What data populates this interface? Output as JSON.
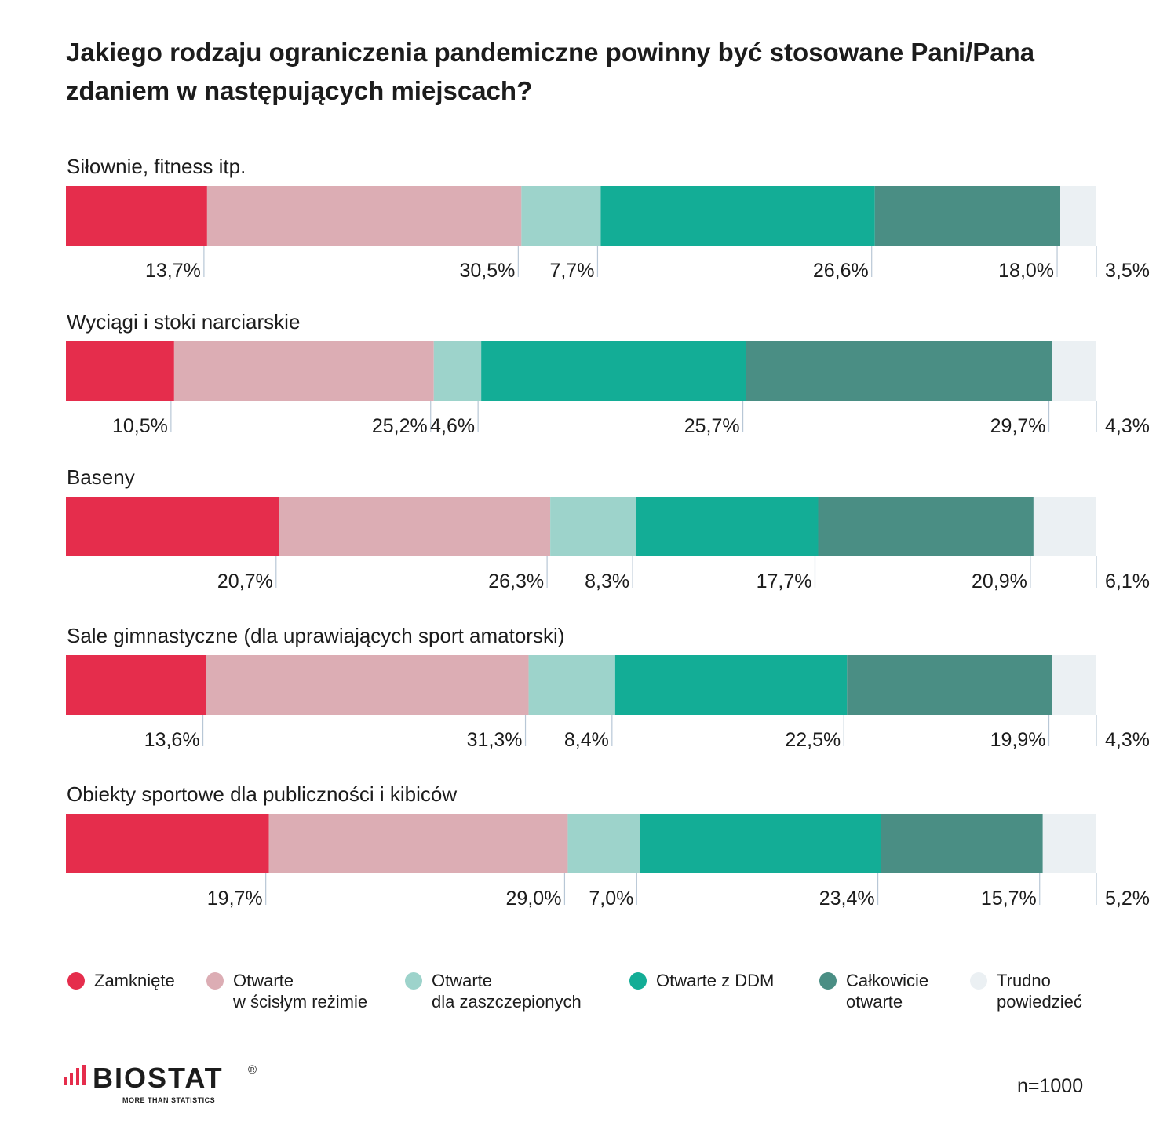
{
  "title": "Jakiego rodzaju ograniczenia pandemiczne powinny być stosowane Pani/Pana zdaniem w następujących miejscach?",
  "colors": {
    "zamkniete": "#e52d4c",
    "scisly": "#dcadb4",
    "zaszczepieni": "#9dd3cb",
    "ddm": "#13ad96",
    "calkowicie": "#4a8e84",
    "trudno": "#ebf0f3",
    "ticks": "#b8c7d6"
  },
  "chart_data": {
    "type": "bar",
    "orientation": "horizontal",
    "stacked": true,
    "unit": "%",
    "title": "Jakiego rodzaju ograniczenia pandemiczne powinny być stosowane Pani/Pana zdaniem w następujących miejscach?",
    "categories": [
      "Siłownie, fitness itp.",
      "Wyciągi i stoki narciarskie",
      "Baseny",
      "Sale gimnastyczne (dla uprawiających sport amatorski)",
      "Obiekty sportowe dla publiczności i kibiców"
    ],
    "series": [
      {
        "name": "Zamknięte",
        "color_key": "zamkniete",
        "values": [
          13.7,
          10.5,
          20.7,
          13.6,
          19.7
        ],
        "labels": [
          "13,7%",
          "10,5%",
          "20,7%",
          "13,6%",
          "19,7%"
        ]
      },
      {
        "name": "Otwarte w ścisłym reżimie",
        "color_key": "scisly",
        "values": [
          30.5,
          25.2,
          26.3,
          31.3,
          29.0
        ],
        "labels": [
          "30,5%",
          "25,2%",
          "26,3%",
          "31,3%",
          "29,0%"
        ]
      },
      {
        "name": "Otwarte dla zaszczepionych",
        "color_key": "zaszczepieni",
        "values": [
          7.7,
          4.6,
          8.3,
          8.4,
          7.0
        ],
        "labels": [
          "7,7%",
          "4,6%",
          "8,3%",
          "8,4%",
          "7,0%"
        ]
      },
      {
        "name": "Otwarte z DDM",
        "color_key": "ddm",
        "values": [
          26.6,
          25.7,
          17.7,
          22.5,
          23.4
        ],
        "labels": [
          "26,6%",
          "25,7%",
          "17,7%",
          "22,5%",
          "23,4%"
        ]
      },
      {
        "name": "Całkowicie otwarte",
        "color_key": "calkowicie",
        "values": [
          18.0,
          29.7,
          20.9,
          19.9,
          15.7
        ],
        "labels": [
          "18,0%",
          "29,7%",
          "20,9%",
          "19,9%",
          "15,7%"
        ]
      },
      {
        "name": "Trudno powiedzieć",
        "color_key": "trudno",
        "values": [
          3.5,
          4.3,
          6.1,
          4.3,
          5.2
        ],
        "labels": [
          "3,5%",
          "4,3%",
          "6,1%",
          "4,3%",
          "5,2%"
        ]
      }
    ],
    "xlim": [
      0,
      100
    ]
  },
  "legend": [
    {
      "label": "Zamknięte",
      "color_key": "zamkniete"
    },
    {
      "label": "Otwarte\nw ścisłym reżimie",
      "color_key": "scisly"
    },
    {
      "label": "Otwarte\ndla zaszczepionych",
      "color_key": "zaszczepieni"
    },
    {
      "label": "Otwarte z DDM",
      "color_key": "ddm"
    },
    {
      "label": "Całkowicie\notwarte",
      "color_key": "calkowicie"
    },
    {
      "label": "Trudno\npowiedzieć",
      "color_key": "trudno"
    }
  ],
  "logo": {
    "name": "BIOSTAT",
    "reg": "®",
    "tagline": "MORE THAN STATISTICS"
  },
  "sample_size": "n=1000"
}
